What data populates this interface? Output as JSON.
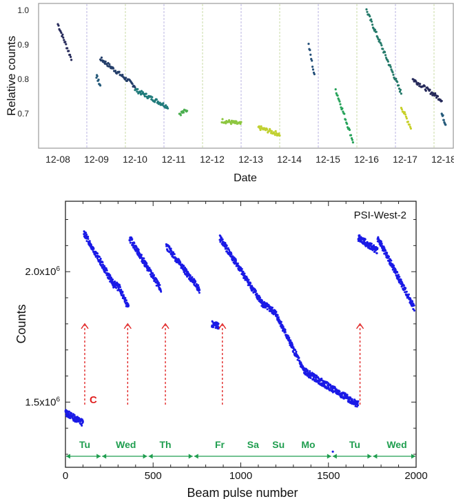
{
  "chart_data": [
    {
      "type": "scatter",
      "title": "",
      "xlabel": "Date",
      "ylabel": "Relative counts",
      "x_tick_labels": [
        "12-08",
        "12-09",
        "12-10",
        "12-11",
        "12-12",
        "12-13",
        "12-14",
        "12-15",
        "12-16",
        "12-17",
        "12-18"
      ],
      "y_ticks": [
        0.7,
        0.8,
        0.9,
        1.0
      ],
      "ylim": [
        0.6,
        1.02
      ],
      "grid": "vertical dashed day separators",
      "colormap": [
        "#2a0f3f",
        "#2b3a7a",
        "#1f7a7a",
        "#27a35a",
        "#8cc63f",
        "#d4d42a"
      ],
      "segments": [
        {
          "x": [
            0.0,
            0.35
          ],
          "y": [
            0.96,
            0.86
          ],
          "color": "#262a5a"
        },
        {
          "x": [
            1.0,
            1.1
          ],
          "y": [
            0.81,
            0.78
          ],
          "color": "#255a7a"
        },
        {
          "x": [
            1.1,
            2.0
          ],
          "y": [
            0.86,
            0.78
          ],
          "color": "#253f6a"
        },
        {
          "x": [
            2.0,
            2.85
          ],
          "y": [
            0.77,
            0.72
          ],
          "color": "#1f7a7a"
        },
        {
          "x": [
            3.15,
            3.35
          ],
          "y": [
            0.7,
            0.71
          ],
          "color": "#4caf50"
        },
        {
          "x": [
            4.25,
            4.75
          ],
          "y": [
            0.68,
            0.67
          ],
          "color": "#8cc63f"
        },
        {
          "x": [
            5.2,
            5.75
          ],
          "y": [
            0.66,
            0.64
          ],
          "color": "#c0d030"
        },
        {
          "x": [
            6.5,
            6.65
          ],
          "y": [
            0.9,
            0.81
          ],
          "color": "#25507a"
        },
        {
          "x": [
            7.2,
            7.65
          ],
          "y": [
            0.77,
            0.62
          ],
          "color": "#27a35a"
        },
        {
          "x": [
            8.0,
            8.9
          ],
          "y": [
            1.0,
            0.76
          ],
          "color": "#257a6a"
        },
        {
          "x": [
            8.9,
            9.15
          ],
          "y": [
            0.72,
            0.66
          ],
          "color": "#c8d02a"
        },
        {
          "x": [
            9.2,
            9.95
          ],
          "y": [
            0.8,
            0.74
          ],
          "color": "#262a5a"
        },
        {
          "x": [
            9.95,
            10.05
          ],
          "y": [
            0.7,
            0.67
          ],
          "color": "#255a7a"
        }
      ]
    },
    {
      "type": "scatter",
      "xlabel": "Beam pulse number",
      "ylabel": "Counts",
      "legend": "PSI-West-2",
      "x_ticks": [
        0,
        500,
        1000,
        1500,
        2000
      ],
      "y_ticks": [
        {
          "value": 2000000,
          "label": "2.0x10",
          "exp": "6"
        },
        {
          "value": 1500000,
          "label": "1.5x10",
          "exp": "6"
        }
      ],
      "xlim": [
        0,
        2000
      ],
      "ylim": [
        1250000,
        2270000
      ],
      "series_color": "#1a1ae6",
      "segments": [
        {
          "x": [
            0,
            100
          ],
          "y": [
            1460000,
            1420000
          ]
        },
        {
          "x": [
            105,
            275
          ],
          "y": [
            2150000,
            1950000
          ]
        },
        {
          "x": [
            275,
            300
          ],
          "y": [
            1960000,
            1940000
          ]
        },
        {
          "x": [
            300,
            360
          ],
          "y": [
            1950000,
            1860000
          ]
        },
        {
          "x": [
            365,
            545
          ],
          "y": [
            2130000,
            1930000
          ]
        },
        {
          "x": [
            575,
            765
          ],
          "y": [
            2100000,
            1930000
          ]
        },
        {
          "x": [
            835,
            875
          ],
          "y": [
            1800000,
            1790000
          ]
        },
        {
          "x": [
            880,
            1120
          ],
          "y": [
            2130000,
            1880000
          ]
        },
        {
          "x": [
            1120,
            1200
          ],
          "y": [
            1880000,
            1840000
          ]
        },
        {
          "x": [
            1200,
            1360
          ],
          "y": [
            1840000,
            1620000
          ]
        },
        {
          "x": [
            1360,
            1500
          ],
          "y": [
            1620000,
            1560000
          ]
        },
        {
          "x": [
            1500,
            1670
          ],
          "y": [
            1560000,
            1490000
          ]
        },
        {
          "x": [
            1670,
            1780
          ],
          "y": [
            2130000,
            2080000
          ]
        },
        {
          "x": [
            1780,
            1990
          ],
          "y": [
            2130000,
            1860000
          ]
        }
      ],
      "isolated_points": [
        {
          "x": 1525,
          "y": 1310000
        }
      ],
      "markers": [
        {
          "x": 110,
          "y_from": 1490000,
          "y_to": 1800000
        },
        {
          "x": 355,
          "y_from": 1490000,
          "y_to": 1800000
        },
        {
          "x": 570,
          "y_from": 1490000,
          "y_to": 1800000
        },
        {
          "x": 895,
          "y_from": 1490000,
          "y_to": 1800000
        },
        {
          "x": 1680,
          "y_from": 1490000,
          "y_to": 1800000
        }
      ],
      "marker_label": "C",
      "marker_color": "#e02020",
      "day_labels": [
        {
          "label": "Tu",
          "x": 110
        },
        {
          "label": "Wed",
          "x": 345
        },
        {
          "label": "Th",
          "x": 570
        },
        {
          "label": "Fr",
          "x": 880
        },
        {
          "label": "Sa",
          "x": 1070
        },
        {
          "label": "Su",
          "x": 1215
        },
        {
          "label": "Mo",
          "x": 1385
        },
        {
          "label": "Tu",
          "x": 1650
        },
        {
          "label": "Wed",
          "x": 1890
        }
      ],
      "day_ranges": [
        [
          0,
          205
        ],
        [
          205,
          470
        ],
        [
          470,
          730
        ],
        [
          730,
          1520
        ],
        [
          1520,
          1750
        ],
        [
          1750,
          2000
        ]
      ],
      "day_color": "#1f9e4f"
    }
  ]
}
